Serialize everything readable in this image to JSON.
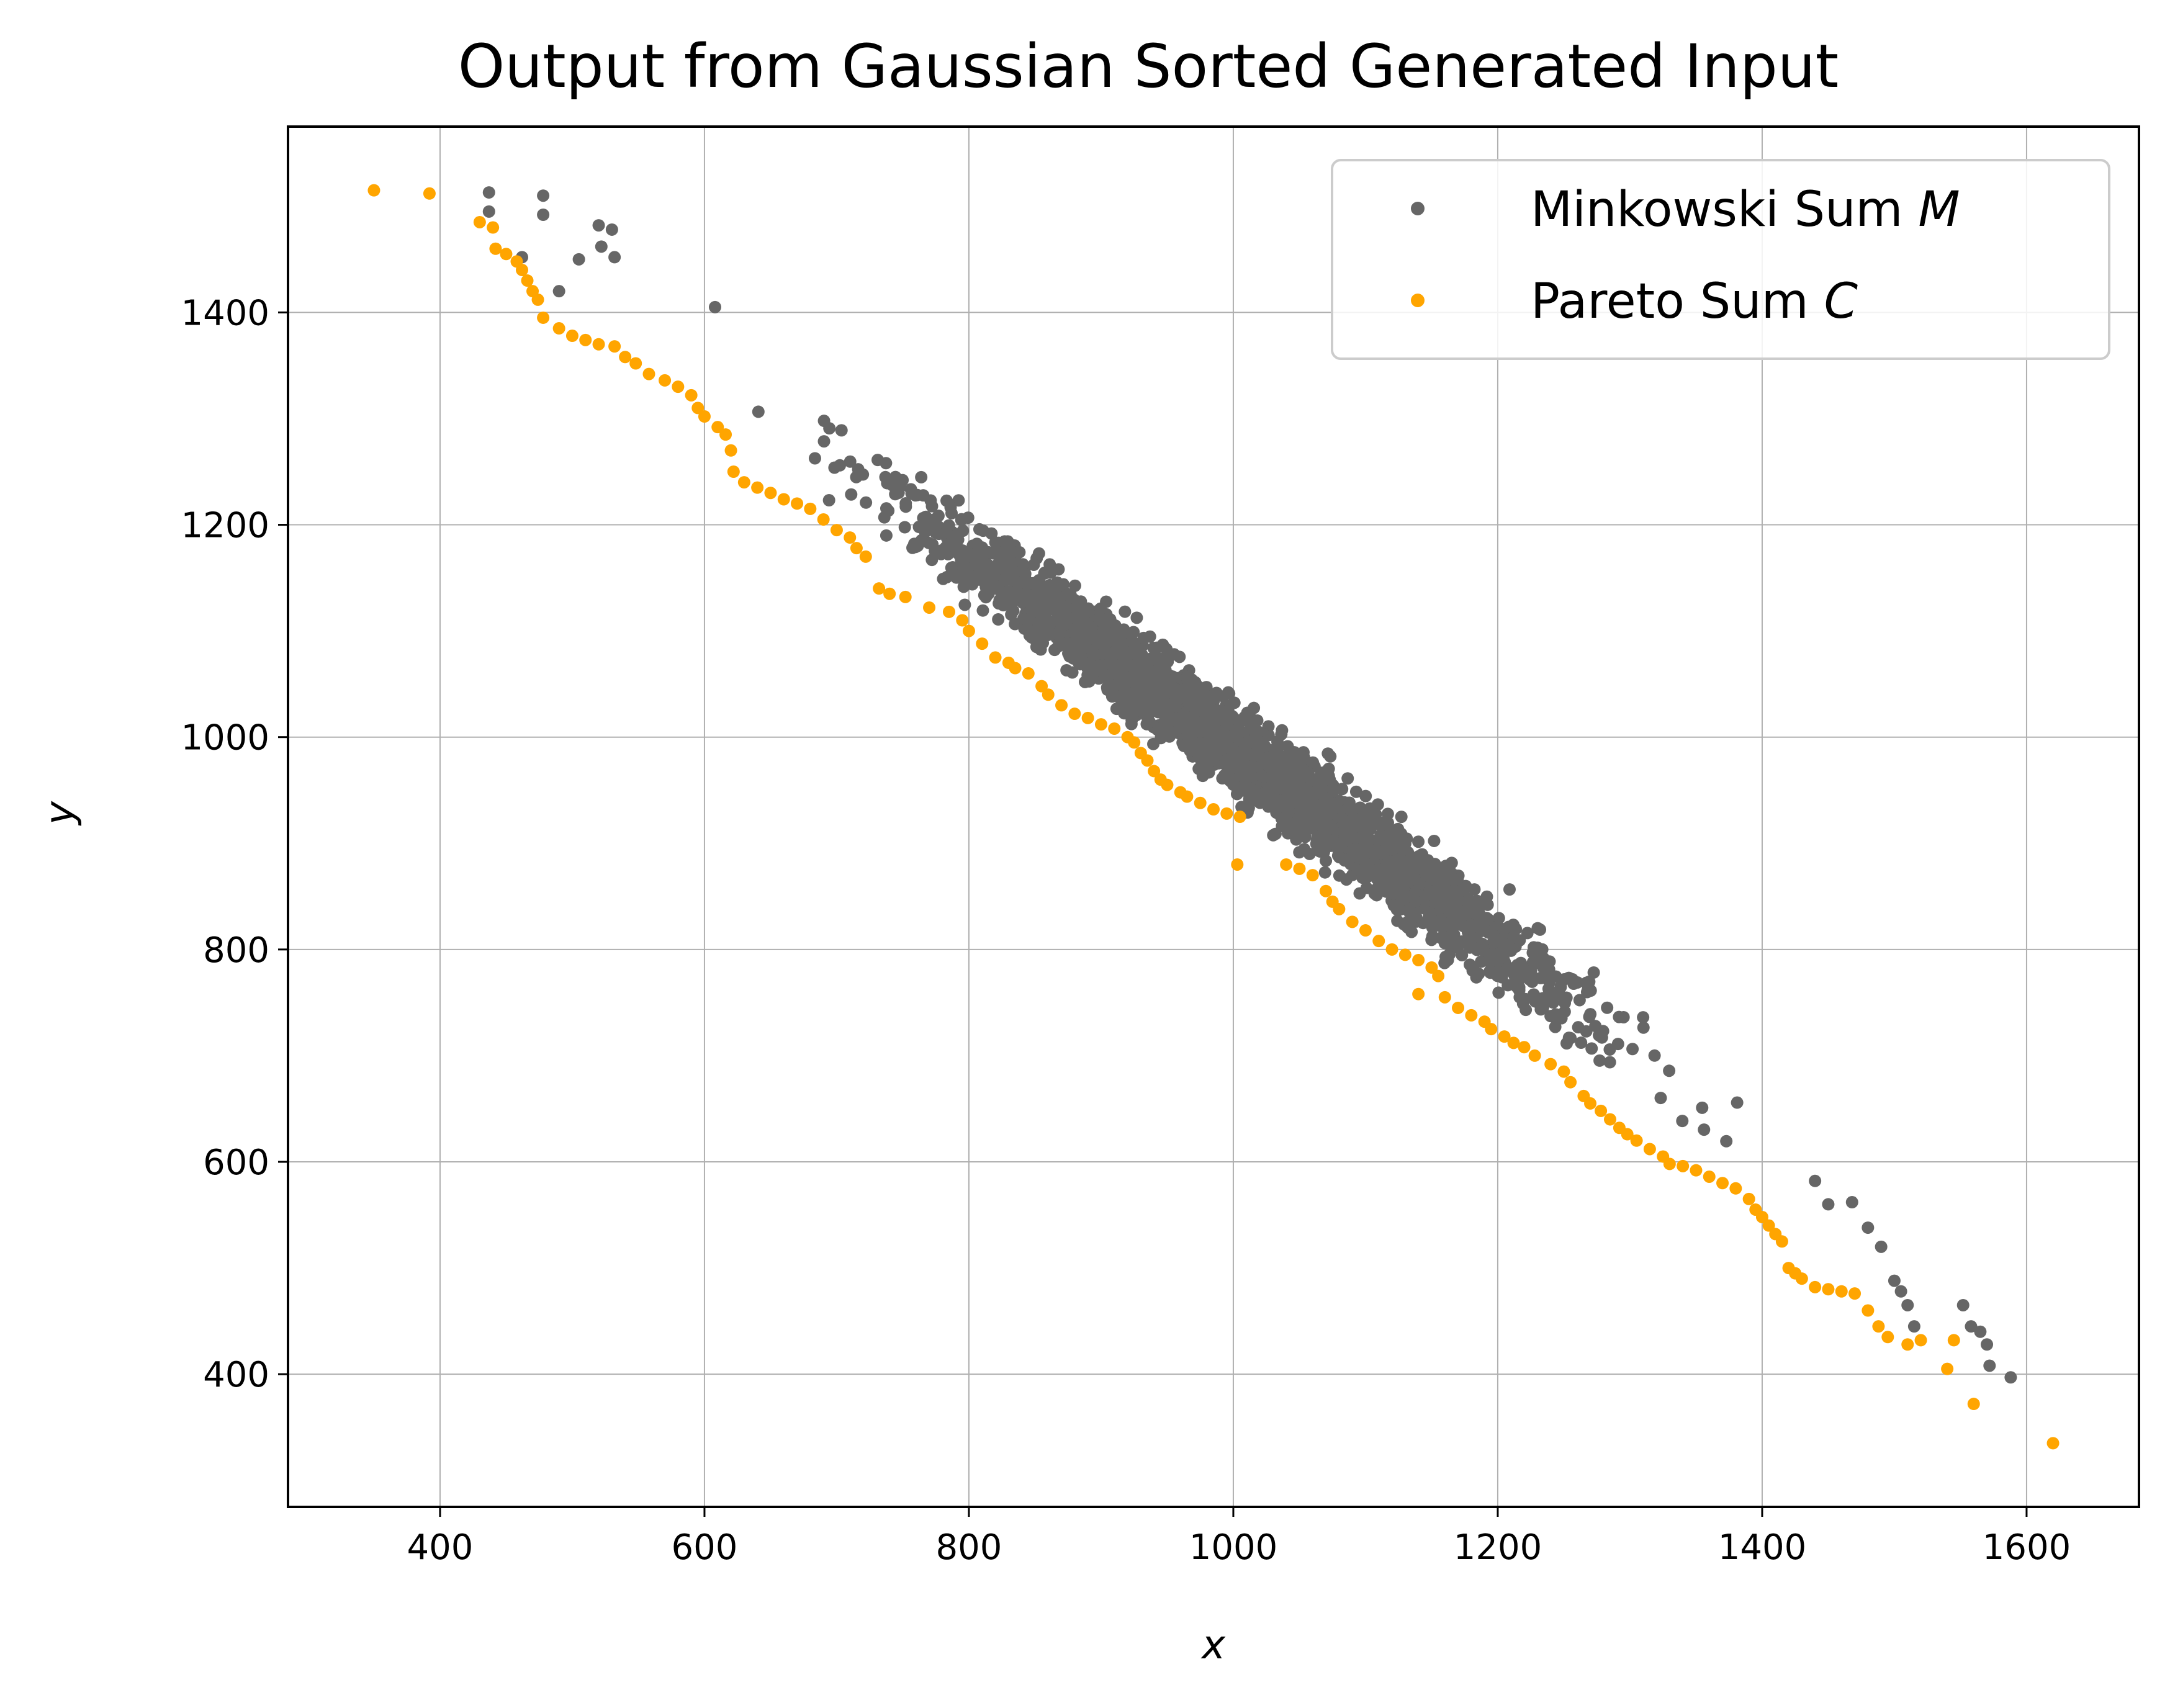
{
  "chart_data": {
    "type": "scatter",
    "title": "Output from Gaussian Sorted Generated Input",
    "xlabel": "x",
    "ylabel": "y",
    "xlim": [
      285,
      1685
    ],
    "ylim": [
      275,
      1575
    ],
    "xticks": [
      400,
      600,
      800,
      1000,
      1200,
      1400,
      1600
    ],
    "yticks": [
      400,
      600,
      800,
      1000,
      1200,
      1400
    ],
    "grid": true,
    "legend_position": "top-right",
    "series": [
      {
        "name": "Minkowski Sum",
        "name_var": "M",
        "color": "#666666",
        "marker": "dot",
        "band": {
          "description_points": [
            [
              430,
              1500
            ],
            [
              520,
              1450
            ],
            [
              600,
              1370
            ],
            [
              700,
              1290
            ],
            [
              800,
              1180
            ],
            [
              900,
              1070
            ],
            [
              1000,
              970
            ],
            [
              1100,
              880
            ],
            [
              1200,
              760
            ],
            [
              1300,
              680
            ],
            [
              1400,
              580
            ],
            [
              1500,
              480
            ],
            [
              1590,
              400
            ]
          ],
          "x_start": 430,
          "x_end": 1600,
          "center_slope": -0.925,
          "center_intercept": 1915,
          "half_width_y": 60
        },
        "points": [
          [
            437,
            1513
          ],
          [
            437,
            1495
          ],
          [
            478,
            1510
          ],
          [
            478,
            1492
          ],
          [
            462,
            1452
          ],
          [
            490,
            1420
          ],
          [
            505,
            1450
          ],
          [
            520,
            1482
          ],
          [
            522,
            1462
          ],
          [
            530,
            1478
          ],
          [
            532,
            1452
          ],
          [
            608,
            1405
          ],
          [
            1440,
            582
          ],
          [
            1450,
            560
          ],
          [
            1468,
            562
          ],
          [
            1480,
            538
          ],
          [
            1490,
            520
          ],
          [
            1500,
            488
          ],
          [
            1505,
            478
          ],
          [
            1510,
            465
          ],
          [
            1515,
            445
          ],
          [
            1552,
            465
          ],
          [
            1558,
            445
          ],
          [
            1565,
            440
          ],
          [
            1570,
            428
          ],
          [
            1572,
            408
          ],
          [
            1588,
            397
          ]
        ]
      },
      {
        "name": "Pareto Sum",
        "name_var": "C",
        "color": "#FFA500",
        "marker": "dot",
        "points": [
          [
            350,
            1515
          ],
          [
            392,
            1512
          ],
          [
            430,
            1485
          ],
          [
            440,
            1480
          ],
          [
            442,
            1460
          ],
          [
            450,
            1455
          ],
          [
            458,
            1448
          ],
          [
            462,
            1440
          ],
          [
            466,
            1430
          ],
          [
            470,
            1420
          ],
          [
            474,
            1412
          ],
          [
            478,
            1395
          ],
          [
            490,
            1385
          ],
          [
            500,
            1378
          ],
          [
            510,
            1374
          ],
          [
            520,
            1370
          ],
          [
            532,
            1368
          ],
          [
            540,
            1358
          ],
          [
            548,
            1352
          ],
          [
            558,
            1342
          ],
          [
            570,
            1336
          ],
          [
            580,
            1330
          ],
          [
            590,
            1322
          ],
          [
            595,
            1310
          ],
          [
            600,
            1302
          ],
          [
            610,
            1292
          ],
          [
            616,
            1285
          ],
          [
            620,
            1270
          ],
          [
            622,
            1250
          ],
          [
            630,
            1240
          ],
          [
            640,
            1235
          ],
          [
            650,
            1230
          ],
          [
            660,
            1224
          ],
          [
            670,
            1220
          ],
          [
            680,
            1215
          ],
          [
            690,
            1205
          ],
          [
            700,
            1195
          ],
          [
            710,
            1188
          ],
          [
            715,
            1178
          ],
          [
            722,
            1170
          ],
          [
            732,
            1140
          ],
          [
            740,
            1135
          ],
          [
            752,
            1132
          ],
          [
            770,
            1122
          ],
          [
            785,
            1118
          ],
          [
            795,
            1110
          ],
          [
            800,
            1100
          ],
          [
            810,
            1088
          ],
          [
            820,
            1075
          ],
          [
            830,
            1070
          ],
          [
            835,
            1065
          ],
          [
            845,
            1060
          ],
          [
            855,
            1048
          ],
          [
            860,
            1040
          ],
          [
            870,
            1030
          ],
          [
            880,
            1022
          ],
          [
            890,
            1018
          ],
          [
            900,
            1012
          ],
          [
            910,
            1008
          ],
          [
            920,
            1000
          ],
          [
            925,
            995
          ],
          [
            930,
            985
          ],
          [
            935,
            978
          ],
          [
            940,
            968
          ],
          [
            945,
            960
          ],
          [
            950,
            955
          ],
          [
            960,
            948
          ],
          [
            965,
            944
          ],
          [
            975,
            938
          ],
          [
            985,
            932
          ],
          [
            995,
            928
          ],
          [
            1005,
            925
          ],
          [
            1003,
            880
          ],
          [
            1040,
            880
          ],
          [
            1050,
            876
          ],
          [
            1060,
            870
          ],
          [
            1070,
            855
          ],
          [
            1075,
            845
          ],
          [
            1080,
            838
          ],
          [
            1090,
            826
          ],
          [
            1100,
            818
          ],
          [
            1110,
            808
          ],
          [
            1120,
            800
          ],
          [
            1130,
            795
          ],
          [
            1140,
            790
          ],
          [
            1150,
            783
          ],
          [
            1155,
            775
          ],
          [
            1140,
            758
          ],
          [
            1160,
            755
          ],
          [
            1170,
            745
          ],
          [
            1180,
            738
          ],
          [
            1190,
            732
          ],
          [
            1195,
            725
          ],
          [
            1205,
            718
          ],
          [
            1212,
            712
          ],
          [
            1220,
            708
          ],
          [
            1228,
            700
          ],
          [
            1240,
            692
          ],
          [
            1250,
            685
          ],
          [
            1255,
            675
          ],
          [
            1265,
            662
          ],
          [
            1270,
            655
          ],
          [
            1278,
            648
          ],
          [
            1285,
            640
          ],
          [
            1292,
            632
          ],
          [
            1298,
            626
          ],
          [
            1305,
            620
          ],
          [
            1315,
            612
          ],
          [
            1325,
            605
          ],
          [
            1330,
            598
          ],
          [
            1340,
            596
          ],
          [
            1350,
            592
          ],
          [
            1360,
            586
          ],
          [
            1370,
            580
          ],
          [
            1380,
            575
          ],
          [
            1390,
            565
          ],
          [
            1395,
            555
          ],
          [
            1400,
            548
          ],
          [
            1405,
            540
          ],
          [
            1410,
            532
          ],
          [
            1415,
            525
          ],
          [
            1420,
            500
          ],
          [
            1425,
            495
          ],
          [
            1430,
            490
          ],
          [
            1440,
            482
          ],
          [
            1450,
            480
          ],
          [
            1460,
            478
          ],
          [
            1470,
            476
          ],
          [
            1480,
            460
          ],
          [
            1488,
            445
          ],
          [
            1495,
            435
          ],
          [
            1510,
            428
          ],
          [
            1520,
            432
          ],
          [
            1545,
            432
          ],
          [
            1540,
            405
          ],
          [
            1560,
            372
          ],
          [
            1620,
            335
          ]
        ]
      }
    ]
  }
}
